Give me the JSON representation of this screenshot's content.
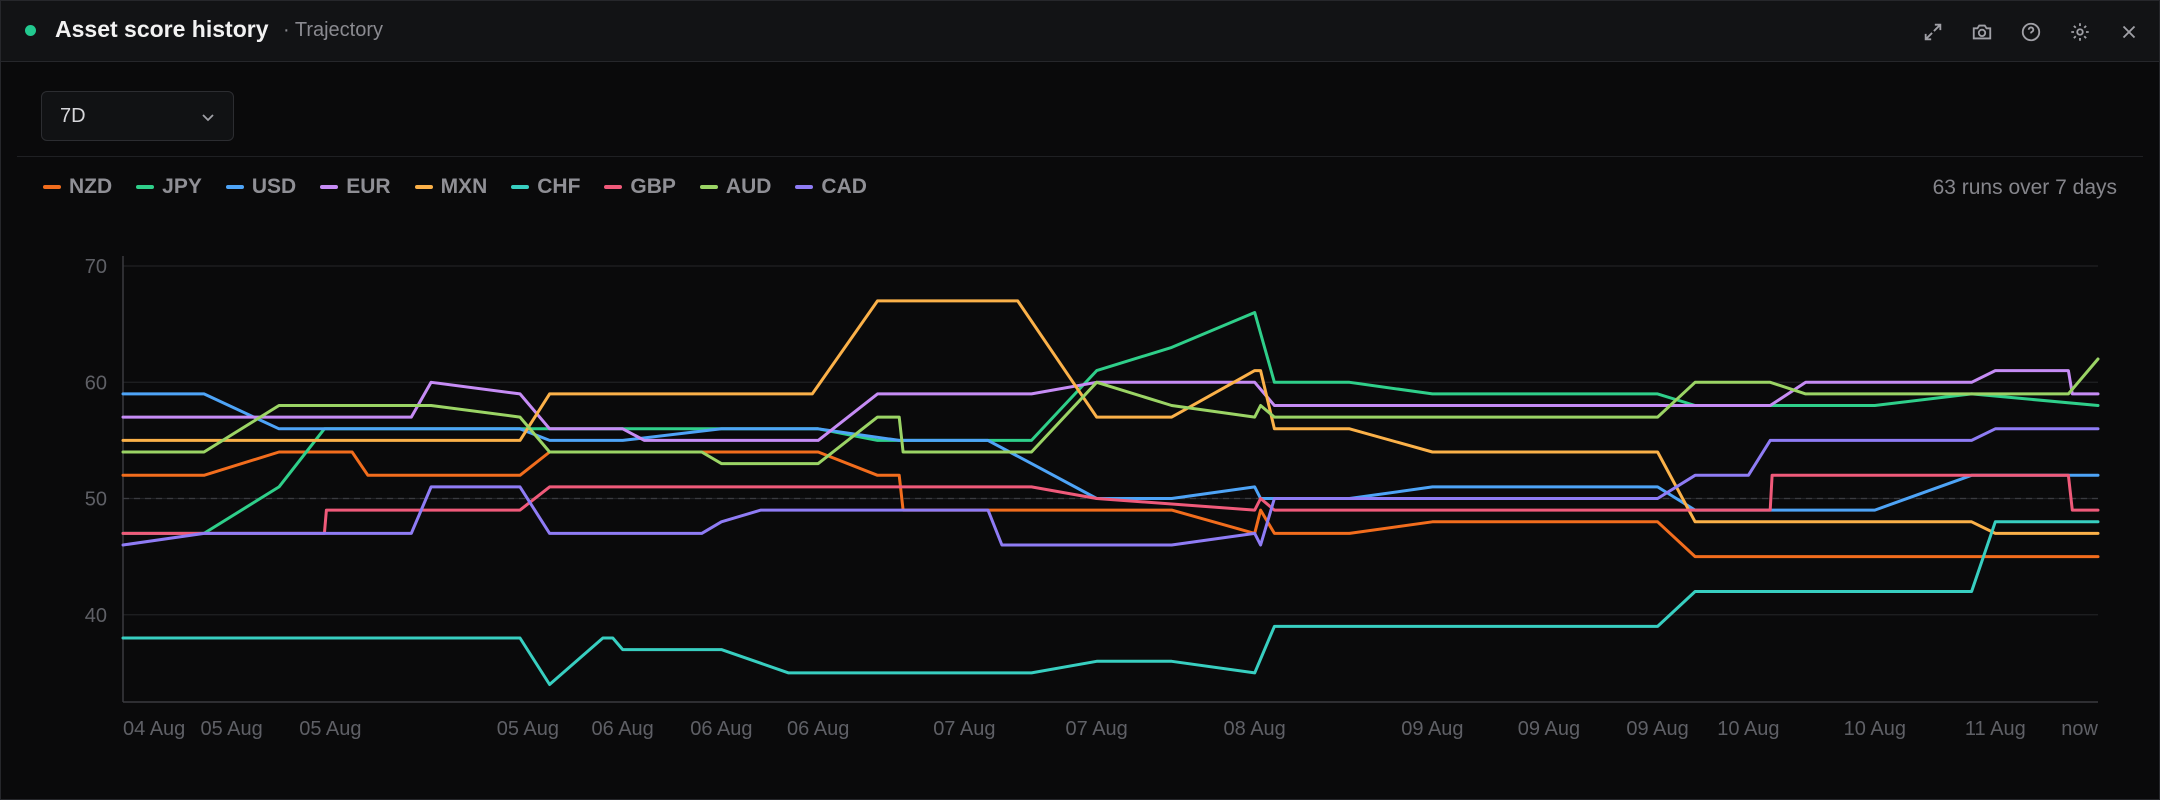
{
  "header": {
    "title": "Asset score history",
    "subtitle": "· Trajectory",
    "status_color": "#22c98f",
    "icons": [
      "expand-icon",
      "camera-icon",
      "help-icon",
      "settings-icon",
      "close-icon"
    ]
  },
  "controls": {
    "range_label": "7D"
  },
  "legend": {
    "runs_text": "63 runs over 7 days"
  },
  "chart_data": {
    "type": "line",
    "ylim": [
      30,
      70
    ],
    "yticks": [
      40,
      50,
      60,
      70
    ],
    "reference_line": 50,
    "grid": true,
    "x_tick_labels": [
      {
        "at": 0,
        "label": "04 Aug"
      },
      {
        "at": 5.5,
        "label": "05 Aug"
      },
      {
        "at": 10.5,
        "label": "05 Aug"
      },
      {
        "at": 20.5,
        "label": "05 Aug"
      },
      {
        "at": 25.3,
        "label": "06 Aug"
      },
      {
        "at": 30.3,
        "label": "06 Aug"
      },
      {
        "at": 35.2,
        "label": "06 Aug"
      },
      {
        "at": 42.6,
        "label": "07 Aug"
      },
      {
        "at": 49.3,
        "label": "07 Aug"
      },
      {
        "at": 57.3,
        "label": "08 Aug"
      },
      {
        "at": 66.3,
        "label": "09 Aug"
      },
      {
        "at": 72.2,
        "label": "09 Aug"
      },
      {
        "at": 77.7,
        "label": "09 Aug"
      },
      {
        "at": 82.3,
        "label": "10 Aug"
      },
      {
        "at": 88.7,
        "label": "10 Aug"
      },
      {
        "at": 94.8,
        "label": "11 Aug"
      },
      {
        "at": 100,
        "label": "now"
      }
    ],
    "x_range": [
      0,
      100
    ],
    "series": [
      {
        "name": "NZD",
        "color": "#f26d1d",
        "points": [
          [
            0,
            52
          ],
          [
            4.1,
            52
          ],
          [
            7.9,
            54
          ],
          [
            11.6,
            54
          ],
          [
            12.4,
            52
          ],
          [
            20.1,
            52
          ],
          [
            21.6,
            54
          ],
          [
            35.2,
            54
          ],
          [
            38.2,
            52
          ],
          [
            39.3,
            52
          ],
          [
            39.5,
            49
          ],
          [
            53.1,
            49
          ],
          [
            57.3,
            47
          ],
          [
            57.6,
            49
          ],
          [
            58.3,
            47
          ],
          [
            62.1,
            47
          ],
          [
            66.3,
            48
          ],
          [
            77.7,
            48
          ],
          [
            79.6,
            45
          ],
          [
            100,
            45
          ]
        ]
      },
      {
        "name": "JPY",
        "color": "#2fcf8a",
        "points": [
          [
            0,
            47
          ],
          [
            4.1,
            47
          ],
          [
            7.9,
            51
          ],
          [
            10.2,
            56
          ],
          [
            23.1,
            56
          ],
          [
            35.2,
            56
          ],
          [
            38.2,
            55
          ],
          [
            46.0,
            55
          ],
          [
            49.3,
            61
          ],
          [
            53.1,
            63
          ],
          [
            57.3,
            66
          ],
          [
            58.3,
            60
          ],
          [
            62.1,
            60
          ],
          [
            66.3,
            59
          ],
          [
            77.7,
            59
          ],
          [
            79.6,
            58
          ],
          [
            83.4,
            58
          ],
          [
            88.7,
            58
          ],
          [
            93.6,
            59
          ],
          [
            100,
            58
          ]
        ]
      },
      {
        "name": "USD",
        "color": "#4ea4f7",
        "points": [
          [
            0,
            59
          ],
          [
            4.1,
            59
          ],
          [
            7.9,
            56
          ],
          [
            20.1,
            56
          ],
          [
            21.6,
            55
          ],
          [
            25.3,
            55
          ],
          [
            30.3,
            56
          ],
          [
            35.2,
            56
          ],
          [
            39.3,
            55
          ],
          [
            43.8,
            55
          ],
          [
            46.0,
            53
          ],
          [
            49.3,
            50
          ],
          [
            53.1,
            50
          ],
          [
            57.3,
            51
          ],
          [
            57.6,
            50
          ],
          [
            62.1,
            50
          ],
          [
            66.3,
            51
          ],
          [
            77.7,
            51
          ],
          [
            79.6,
            49
          ],
          [
            88.7,
            49
          ],
          [
            93.6,
            52
          ],
          [
            100,
            52
          ]
        ]
      },
      {
        "name": "EUR",
        "color": "#c68cf5",
        "points": [
          [
            0,
            57
          ],
          [
            4.1,
            57
          ],
          [
            14.6,
            57
          ],
          [
            15.6,
            60
          ],
          [
            20.1,
            59
          ],
          [
            21.6,
            56
          ],
          [
            25.3,
            56
          ],
          [
            26.4,
            55
          ],
          [
            35.2,
            55
          ],
          [
            38.2,
            59
          ],
          [
            46.0,
            59
          ],
          [
            49.3,
            60
          ],
          [
            57.3,
            60
          ],
          [
            58.3,
            58
          ],
          [
            77.7,
            58
          ],
          [
            83.4,
            58
          ],
          [
            85.2,
            60
          ],
          [
            93.6,
            60
          ],
          [
            94.8,
            61
          ],
          [
            98.5,
            61
          ],
          [
            98.7,
            59
          ],
          [
            100,
            59
          ]
        ]
      },
      {
        "name": "MXN",
        "color": "#fbb149",
        "points": [
          [
            0,
            55
          ],
          [
            4.1,
            55
          ],
          [
            20.1,
            55
          ],
          [
            21.6,
            59
          ],
          [
            34.9,
            59
          ],
          [
            38.2,
            67
          ],
          [
            45.3,
            67
          ],
          [
            49.3,
            57
          ],
          [
            53.1,
            57
          ],
          [
            57.3,
            61
          ],
          [
            57.6,
            61
          ],
          [
            58.3,
            56
          ],
          [
            62.1,
            56
          ],
          [
            66.3,
            54
          ],
          [
            77.7,
            54
          ],
          [
            79.6,
            48
          ],
          [
            93.6,
            48
          ],
          [
            94.8,
            47
          ],
          [
            100,
            47
          ]
        ]
      },
      {
        "name": "CHF",
        "color": "#38cfc1",
        "points": [
          [
            0,
            38
          ],
          [
            20.1,
            38
          ],
          [
            21.6,
            34
          ],
          [
            24.3,
            38
          ],
          [
            24.8,
            38
          ],
          [
            25.3,
            37
          ],
          [
            30.3,
            37
          ],
          [
            33.7,
            35
          ],
          [
            46.0,
            35
          ],
          [
            49.3,
            36
          ],
          [
            53.1,
            36
          ],
          [
            57.3,
            35
          ],
          [
            58.3,
            39
          ],
          [
            62.1,
            39
          ],
          [
            66.3,
            39
          ],
          [
            77.7,
            39
          ],
          [
            79.6,
            42
          ],
          [
            93.6,
            42
          ],
          [
            94.8,
            48
          ],
          [
            100,
            48
          ]
        ]
      },
      {
        "name": "GBP",
        "color": "#f05a7a",
        "points": [
          [
            0,
            47
          ],
          [
            10.2,
            47
          ],
          [
            10.3,
            49
          ],
          [
            14.6,
            49
          ],
          [
            20.1,
            49
          ],
          [
            21.6,
            51
          ],
          [
            35.2,
            51
          ],
          [
            39.3,
            51
          ],
          [
            46.0,
            51
          ],
          [
            49.3,
            50
          ],
          [
            57.3,
            49
          ],
          [
            57.6,
            50
          ],
          [
            58.3,
            49
          ],
          [
            62.1,
            49
          ],
          [
            66.3,
            49
          ],
          [
            77.7,
            49
          ],
          [
            83.4,
            49
          ],
          [
            83.5,
            52
          ],
          [
            98.5,
            52
          ],
          [
            98.7,
            49
          ],
          [
            100,
            49
          ]
        ]
      },
      {
        "name": "AUD",
        "color": "#9bd465",
        "points": [
          [
            0,
            54
          ],
          [
            4.1,
            54
          ],
          [
            7.9,
            58
          ],
          [
            15.6,
            58
          ],
          [
            20.1,
            57
          ],
          [
            21.6,
            54
          ],
          [
            25.3,
            54
          ],
          [
            29.3,
            54
          ],
          [
            30.3,
            53
          ],
          [
            35.2,
            53
          ],
          [
            38.2,
            57
          ],
          [
            39.3,
            57
          ],
          [
            39.5,
            54
          ],
          [
            46.0,
            54
          ],
          [
            49.3,
            60
          ],
          [
            53.1,
            58
          ],
          [
            57.3,
            57
          ],
          [
            57.6,
            58
          ],
          [
            58.3,
            57
          ],
          [
            62.1,
            57
          ],
          [
            66.3,
            57
          ],
          [
            77.7,
            57
          ],
          [
            79.6,
            60
          ],
          [
            83.4,
            60
          ],
          [
            85.2,
            59
          ],
          [
            93.6,
            59
          ],
          [
            98.5,
            59
          ],
          [
            100,
            62
          ]
        ]
      },
      {
        "name": "CAD",
        "color": "#8f7cf5",
        "points": [
          [
            0,
            46
          ],
          [
            4.1,
            47
          ],
          [
            10.2,
            47
          ],
          [
            14.6,
            47
          ],
          [
            15.6,
            51
          ],
          [
            20.1,
            51
          ],
          [
            21.6,
            47
          ],
          [
            29.3,
            47
          ],
          [
            30.3,
            48
          ],
          [
            32.3,
            49
          ],
          [
            39.3,
            49
          ],
          [
            43.8,
            49
          ],
          [
            44.5,
            46
          ],
          [
            53.1,
            46
          ],
          [
            57.3,
            47
          ],
          [
            57.6,
            46
          ],
          [
            58.3,
            50
          ],
          [
            62.1,
            50
          ],
          [
            66.3,
            50
          ],
          [
            77.7,
            50
          ],
          [
            79.6,
            52
          ],
          [
            82.3,
            52
          ],
          [
            83.4,
            55
          ],
          [
            88.7,
            55
          ],
          [
            93.6,
            55
          ],
          [
            94.8,
            56
          ],
          [
            100,
            56
          ]
        ]
      }
    ]
  }
}
